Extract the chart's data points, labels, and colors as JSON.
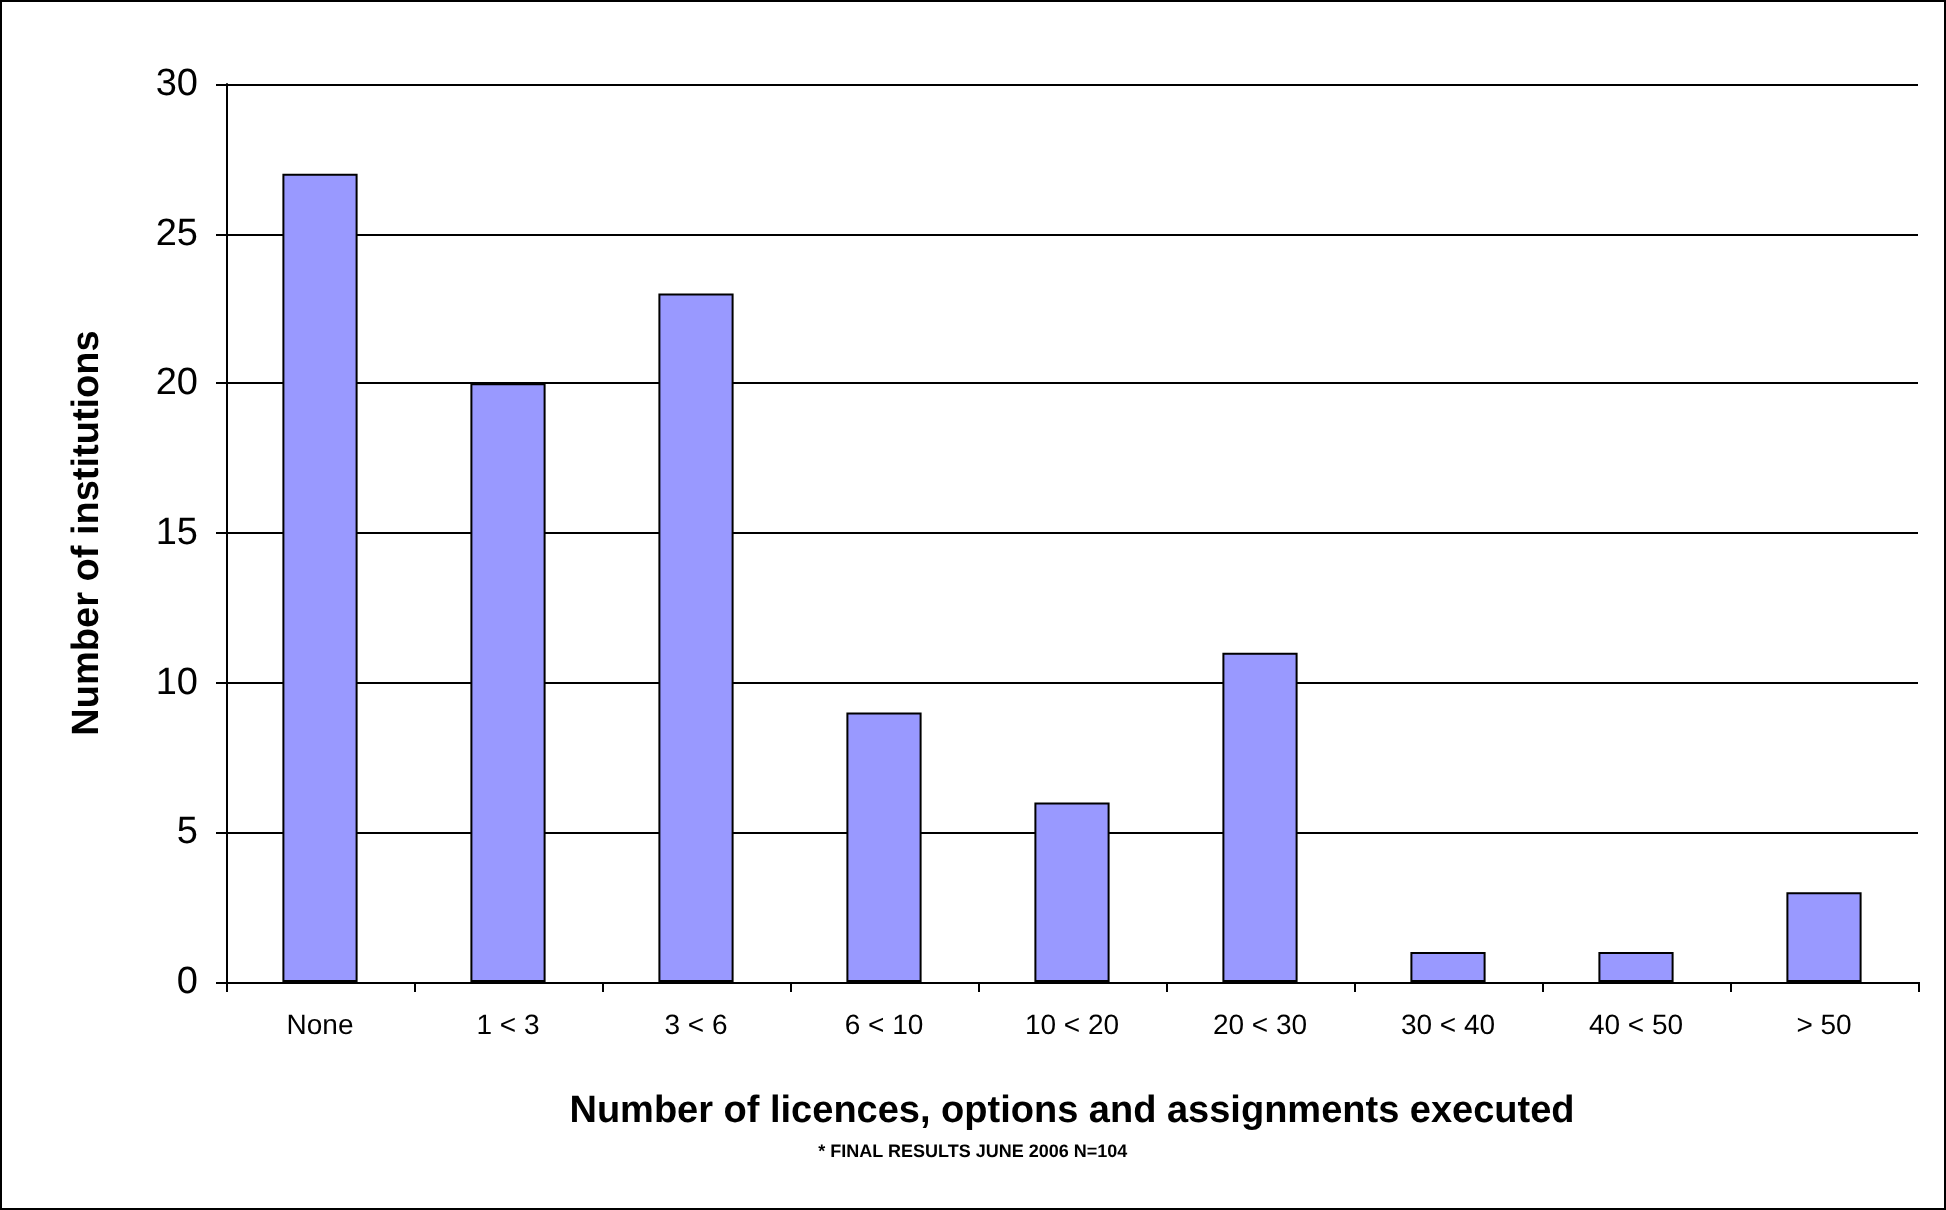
{
  "chart_data": {
    "type": "bar",
    "xlabel": "Number of licences, options and assignments executed",
    "ylabel": "Number of institutions",
    "annotations": [
      "* FINAL RESULTS JUNE 2006 N=104"
    ],
    "categories": [
      "None",
      "1 < 3",
      "3 < 6",
      "6 < 10",
      "10 < 20",
      "20 < 30",
      "30 < 40",
      "40 < 50",
      "> 50"
    ],
    "values": [
      27,
      20,
      23,
      9,
      6,
      11,
      1,
      1,
      3
    ],
    "color": "#9999ff",
    "ylim": [
      0,
      30
    ],
    "yticks": [
      0,
      5,
      10,
      15,
      20,
      25,
      30
    ],
    "grid": "y"
  }
}
